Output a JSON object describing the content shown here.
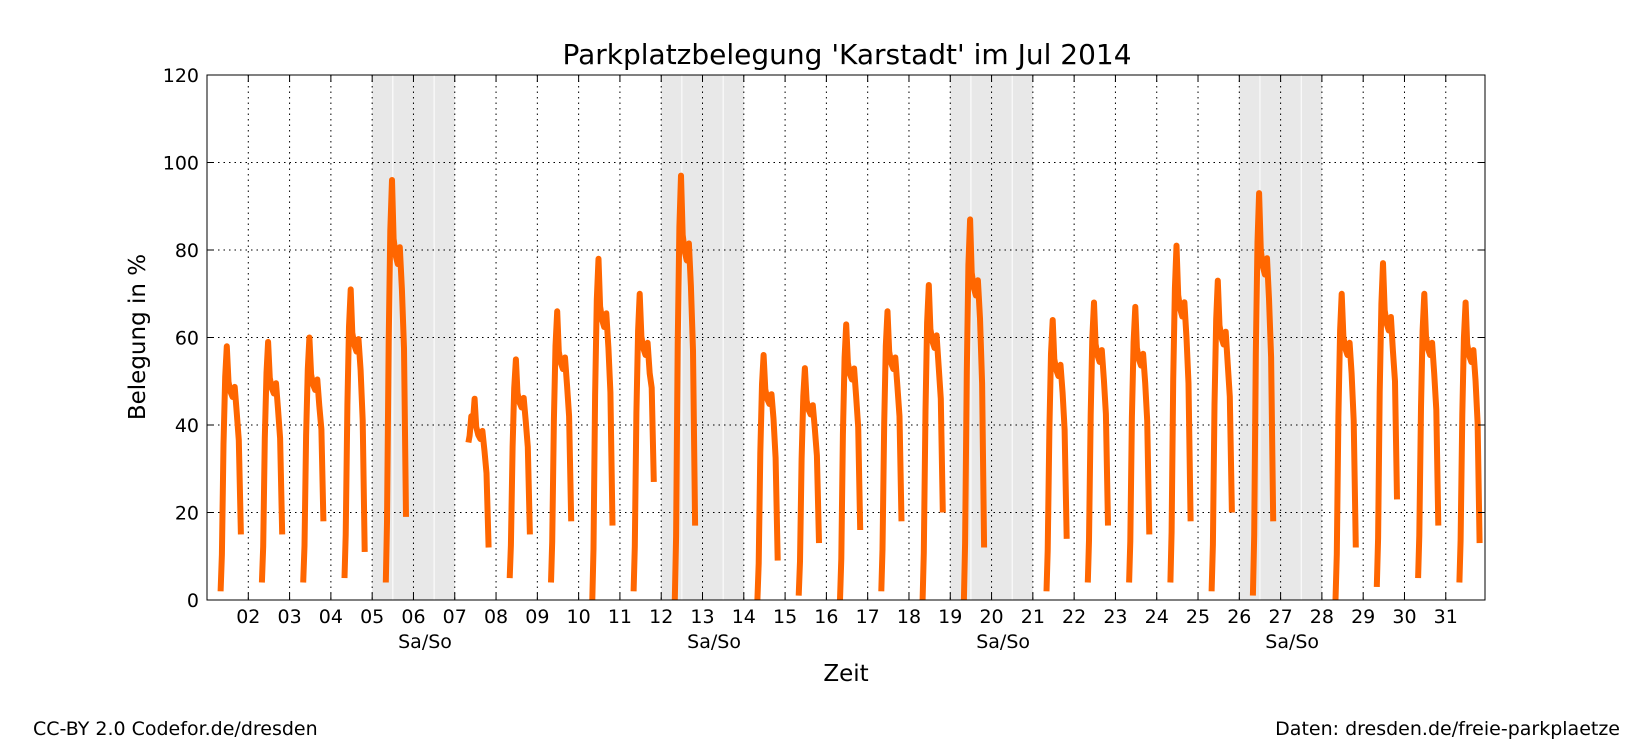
{
  "chart_data": {
    "type": "line",
    "title": "Parkplatzbelegung 'Karstadt' im Jul 2014",
    "xlabel": "Zeit",
    "ylabel": "Belegung in %",
    "ylim": [
      0,
      120
    ],
    "yticks": [
      0,
      20,
      40,
      60,
      80,
      100,
      120
    ],
    "xlim_days": [
      1.0,
      31.95
    ],
    "x_tick_labels": [
      "02",
      "03",
      "04",
      "05",
      "06",
      "07",
      "08",
      "09",
      "10",
      "11",
      "12",
      "13",
      "14",
      "15",
      "16",
      "17",
      "18",
      "19",
      "20",
      "21",
      "22",
      "23",
      "24",
      "25",
      "26",
      "27",
      "28",
      "29",
      "30",
      "31"
    ],
    "weekend_label": "Sa/So",
    "weekends": [
      {
        "start": "05",
        "end": "07",
        "label": "Sa/So"
      },
      {
        "start": "12",
        "end": "14",
        "label": "Sa/So"
      },
      {
        "start": "19",
        "end": "21",
        "label": "Sa/So"
      },
      {
        "start": "26",
        "end": "28",
        "label": "Sa/So"
      }
    ],
    "grid": true,
    "series_color": "#ff6600",
    "weekend_color": "#e8e8e8",
    "daily_occupancy": [
      {
        "day": 1,
        "open": 2,
        "peak": 58,
        "close": 15
      },
      {
        "day": 2,
        "open": 4,
        "peak": 59,
        "close": 15
      },
      {
        "day": 3,
        "open": 4,
        "peak": 60,
        "close": 18
      },
      {
        "day": 4,
        "open": 5,
        "peak": 71,
        "close": 11
      },
      {
        "day": 5,
        "open": 4,
        "peak": 96,
        "close": 19
      },
      {
        "day": 7,
        "open": 36,
        "peak": 46,
        "close": 12
      },
      {
        "day": 8,
        "open": 5,
        "peak": 55,
        "close": 15
      },
      {
        "day": 9,
        "open": 4,
        "peak": 66,
        "close": 18
      },
      {
        "day": 10,
        "open": 0,
        "peak": 78,
        "close": 17
      },
      {
        "day": 11,
        "open": 2,
        "peak": 70,
        "close": 27
      },
      {
        "day": 12,
        "open": 0,
        "peak": 97,
        "close": 17
      },
      {
        "day": 14,
        "open": 0,
        "peak": 56,
        "close": 9
      },
      {
        "day": 15,
        "open": 1,
        "peak": 53,
        "close": 13
      },
      {
        "day": 16,
        "open": 0,
        "peak": 63,
        "close": 16
      },
      {
        "day": 17,
        "open": 2,
        "peak": 66,
        "close": 18
      },
      {
        "day": 18,
        "open": 0,
        "peak": 72,
        "close": 20
      },
      {
        "day": 19,
        "open": 0,
        "peak": 87,
        "close": 12
      },
      {
        "day": 21,
        "open": 2,
        "peak": 64,
        "close": 14
      },
      {
        "day": 22,
        "open": 4,
        "peak": 68,
        "close": 17
      },
      {
        "day": 23,
        "open": 4,
        "peak": 67,
        "close": 15
      },
      {
        "day": 24,
        "open": 4,
        "peak": 81,
        "close": 18
      },
      {
        "day": 25,
        "open": 2,
        "peak": 73,
        "close": 20
      },
      {
        "day": 26,
        "open": 1,
        "peak": 93,
        "close": 18
      },
      {
        "day": 28,
        "open": 0,
        "peak": 70,
        "close": 12
      },
      {
        "day": 29,
        "open": 3,
        "peak": 77,
        "close": 23
      },
      {
        "day": 30,
        "open": 5,
        "peak": 70,
        "close": 17
      },
      {
        "day": 31,
        "open": 4,
        "peak": 68,
        "close": 13
      }
    ]
  },
  "footer": {
    "license": "CC-BY 2.0 Codefor.de/dresden",
    "source": "Daten: dresden.de/freie-parkplaetze"
  }
}
